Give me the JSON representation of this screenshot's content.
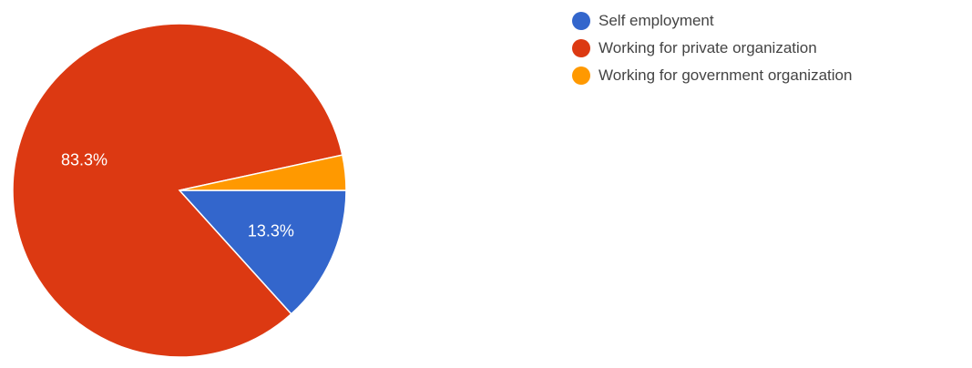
{
  "chart_data": {
    "type": "pie",
    "slices": [
      {
        "name": "Self employment",
        "value": 13.3,
        "label": "13.3%",
        "color": "#3366cc"
      },
      {
        "name": "Working for private organization",
        "value": 83.3,
        "label": "83.3%",
        "color": "#dc3912"
      },
      {
        "name": "Working for government organization",
        "value": 3.4,
        "label": "",
        "color": "#ff9900"
      }
    ],
    "legend_position": "right"
  }
}
